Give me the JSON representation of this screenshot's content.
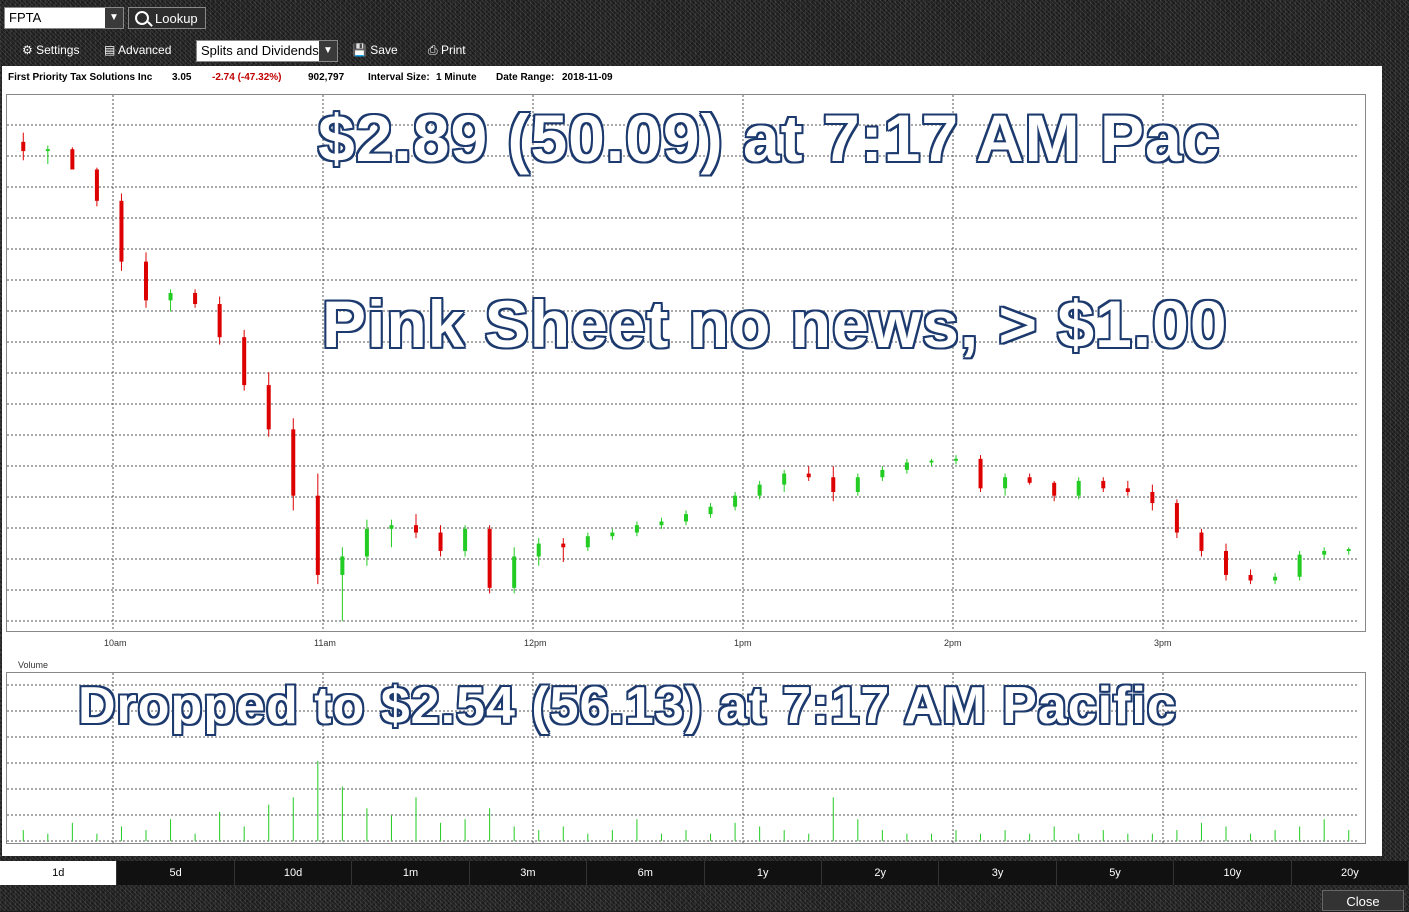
{
  "toolbar": {
    "symbol": "FPTA",
    "lookup_label": "Lookup",
    "settings_label": "Settings",
    "advanced_label": "Advanced",
    "splits_label": "Splits and Dividends",
    "save_label": "Save",
    "print_label": "Print"
  },
  "info": {
    "company": "First Priority Tax Solutions Inc",
    "price": "3.05",
    "change": "-2.74 (-47.32%)",
    "volume": "902,797",
    "interval_label": "Interval Size:",
    "interval_value": "1 Minute",
    "range_label": "Date Range:",
    "range_value": "2018-11-09"
  },
  "annotations": {
    "line1": "$2.89 (50.09) at 7:17 AM Pac",
    "line2": "Pink Sheet no news, > $1.00",
    "line3": "Dropped to $2.54 (56.13) at 7:17 AM Pacific"
  },
  "chart_data": {
    "type": "candlestick",
    "x_ticks": [
      "10am",
      "11am",
      "12pm",
      "1pm",
      "2pm",
      "3pm"
    ],
    "volume_label": "Volume",
    "colors": {
      "up": "#22cc22",
      "down": "#dd0000",
      "grid": "#444444"
    },
    "candles": [
      [
        4.2,
        4.25,
        4.1,
        4.15
      ],
      [
        4.15,
        4.18,
        4.08,
        4.16
      ],
      [
        4.16,
        4.17,
        4.05,
        4.05
      ],
      [
        4.05,
        4.06,
        3.85,
        3.88
      ],
      [
        3.88,
        3.92,
        3.5,
        3.55
      ],
      [
        3.55,
        3.6,
        3.3,
        3.34
      ],
      [
        3.34,
        3.4,
        3.28,
        3.38
      ],
      [
        3.38,
        3.4,
        3.3,
        3.32
      ],
      [
        3.32,
        3.36,
        3.1,
        3.14
      ],
      [
        3.14,
        3.18,
        2.85,
        2.88
      ],
      [
        2.88,
        2.95,
        2.6,
        2.64
      ],
      [
        2.64,
        2.7,
        2.2,
        2.28
      ],
      [
        2.28,
        2.4,
        1.8,
        1.85
      ],
      [
        1.85,
        2.0,
        1.6,
        1.95
      ],
      [
        1.95,
        2.15,
        1.9,
        2.1
      ],
      [
        2.1,
        2.15,
        2.0,
        2.12
      ],
      [
        2.12,
        2.18,
        2.05,
        2.08
      ],
      [
        2.08,
        2.12,
        1.95,
        1.98
      ],
      [
        1.98,
        2.12,
        1.95,
        2.1
      ],
      [
        2.1,
        2.12,
        1.75,
        1.78
      ],
      [
        1.78,
        2.0,
        1.75,
        1.95
      ],
      [
        1.95,
        2.05,
        1.9,
        2.02
      ],
      [
        2.02,
        2.05,
        1.92,
        2.0
      ],
      [
        2.0,
        2.08,
        1.98,
        2.06
      ],
      [
        2.06,
        2.1,
        2.04,
        2.08
      ],
      [
        2.08,
        2.14,
        2.06,
        2.12
      ],
      [
        2.12,
        2.16,
        2.1,
        2.14
      ],
      [
        2.14,
        2.2,
        2.12,
        2.18
      ],
      [
        2.18,
        2.24,
        2.16,
        2.22
      ],
      [
        2.22,
        2.3,
        2.2,
        2.28
      ],
      [
        2.28,
        2.36,
        2.26,
        2.34
      ],
      [
        2.34,
        2.42,
        2.3,
        2.4
      ],
      [
        2.4,
        2.44,
        2.36,
        2.38
      ],
      [
        2.38,
        2.44,
        2.25,
        2.3
      ],
      [
        2.3,
        2.4,
        2.28,
        2.38
      ],
      [
        2.38,
        2.44,
        2.36,
        2.42
      ],
      [
        2.42,
        2.48,
        2.4,
        2.46
      ],
      [
        2.46,
        2.48,
        2.44,
        2.47
      ],
      [
        2.47,
        2.5,
        2.45,
        2.48
      ],
      [
        2.48,
        2.5,
        2.3,
        2.32
      ],
      [
        2.32,
        2.4,
        2.28,
        2.38
      ],
      [
        2.38,
        2.4,
        2.34,
        2.35
      ],
      [
        2.35,
        2.36,
        2.25,
        2.28
      ],
      [
        2.28,
        2.38,
        2.26,
        2.36
      ],
      [
        2.36,
        2.38,
        2.3,
        2.32
      ],
      [
        2.32,
        2.36,
        2.28,
        2.3
      ],
      [
        2.3,
        2.34,
        2.2,
        2.24
      ],
      [
        2.24,
        2.26,
        2.05,
        2.08
      ],
      [
        2.08,
        2.1,
        1.95,
        1.98
      ],
      [
        1.98,
        2.02,
        1.82,
        1.85
      ],
      [
        1.85,
        1.88,
        1.8,
        1.82
      ],
      [
        1.82,
        1.86,
        1.8,
        1.84
      ],
      [
        1.84,
        1.98,
        1.82,
        1.96
      ],
      [
        1.96,
        2.0,
        1.94,
        1.98
      ],
      [
        1.98,
        2.0,
        1.96,
        1.99
      ]
    ],
    "volumes": [
      3,
      2,
      5,
      2,
      4,
      3,
      6,
      2,
      8,
      4,
      10,
      12,
      22,
      15,
      9,
      7,
      12,
      5,
      6,
      9,
      4,
      3,
      4,
      2,
      3,
      6,
      2,
      3,
      2,
      5,
      4,
      3,
      2,
      12,
      6,
      3,
      2,
      2,
      3,
      2,
      3,
      2,
      4,
      2,
      3,
      2,
      2,
      3,
      5,
      4,
      2,
      3,
      4,
      6,
      3
    ],
    "ymin": 1.6,
    "ymax": 4.4
  },
  "tabs": [
    "1d",
    "5d",
    "10d",
    "1m",
    "3m",
    "6m",
    "1y",
    "2y",
    "3y",
    "5y",
    "10y",
    "20y"
  ],
  "active_tab": "1d",
  "close_label": "Close"
}
